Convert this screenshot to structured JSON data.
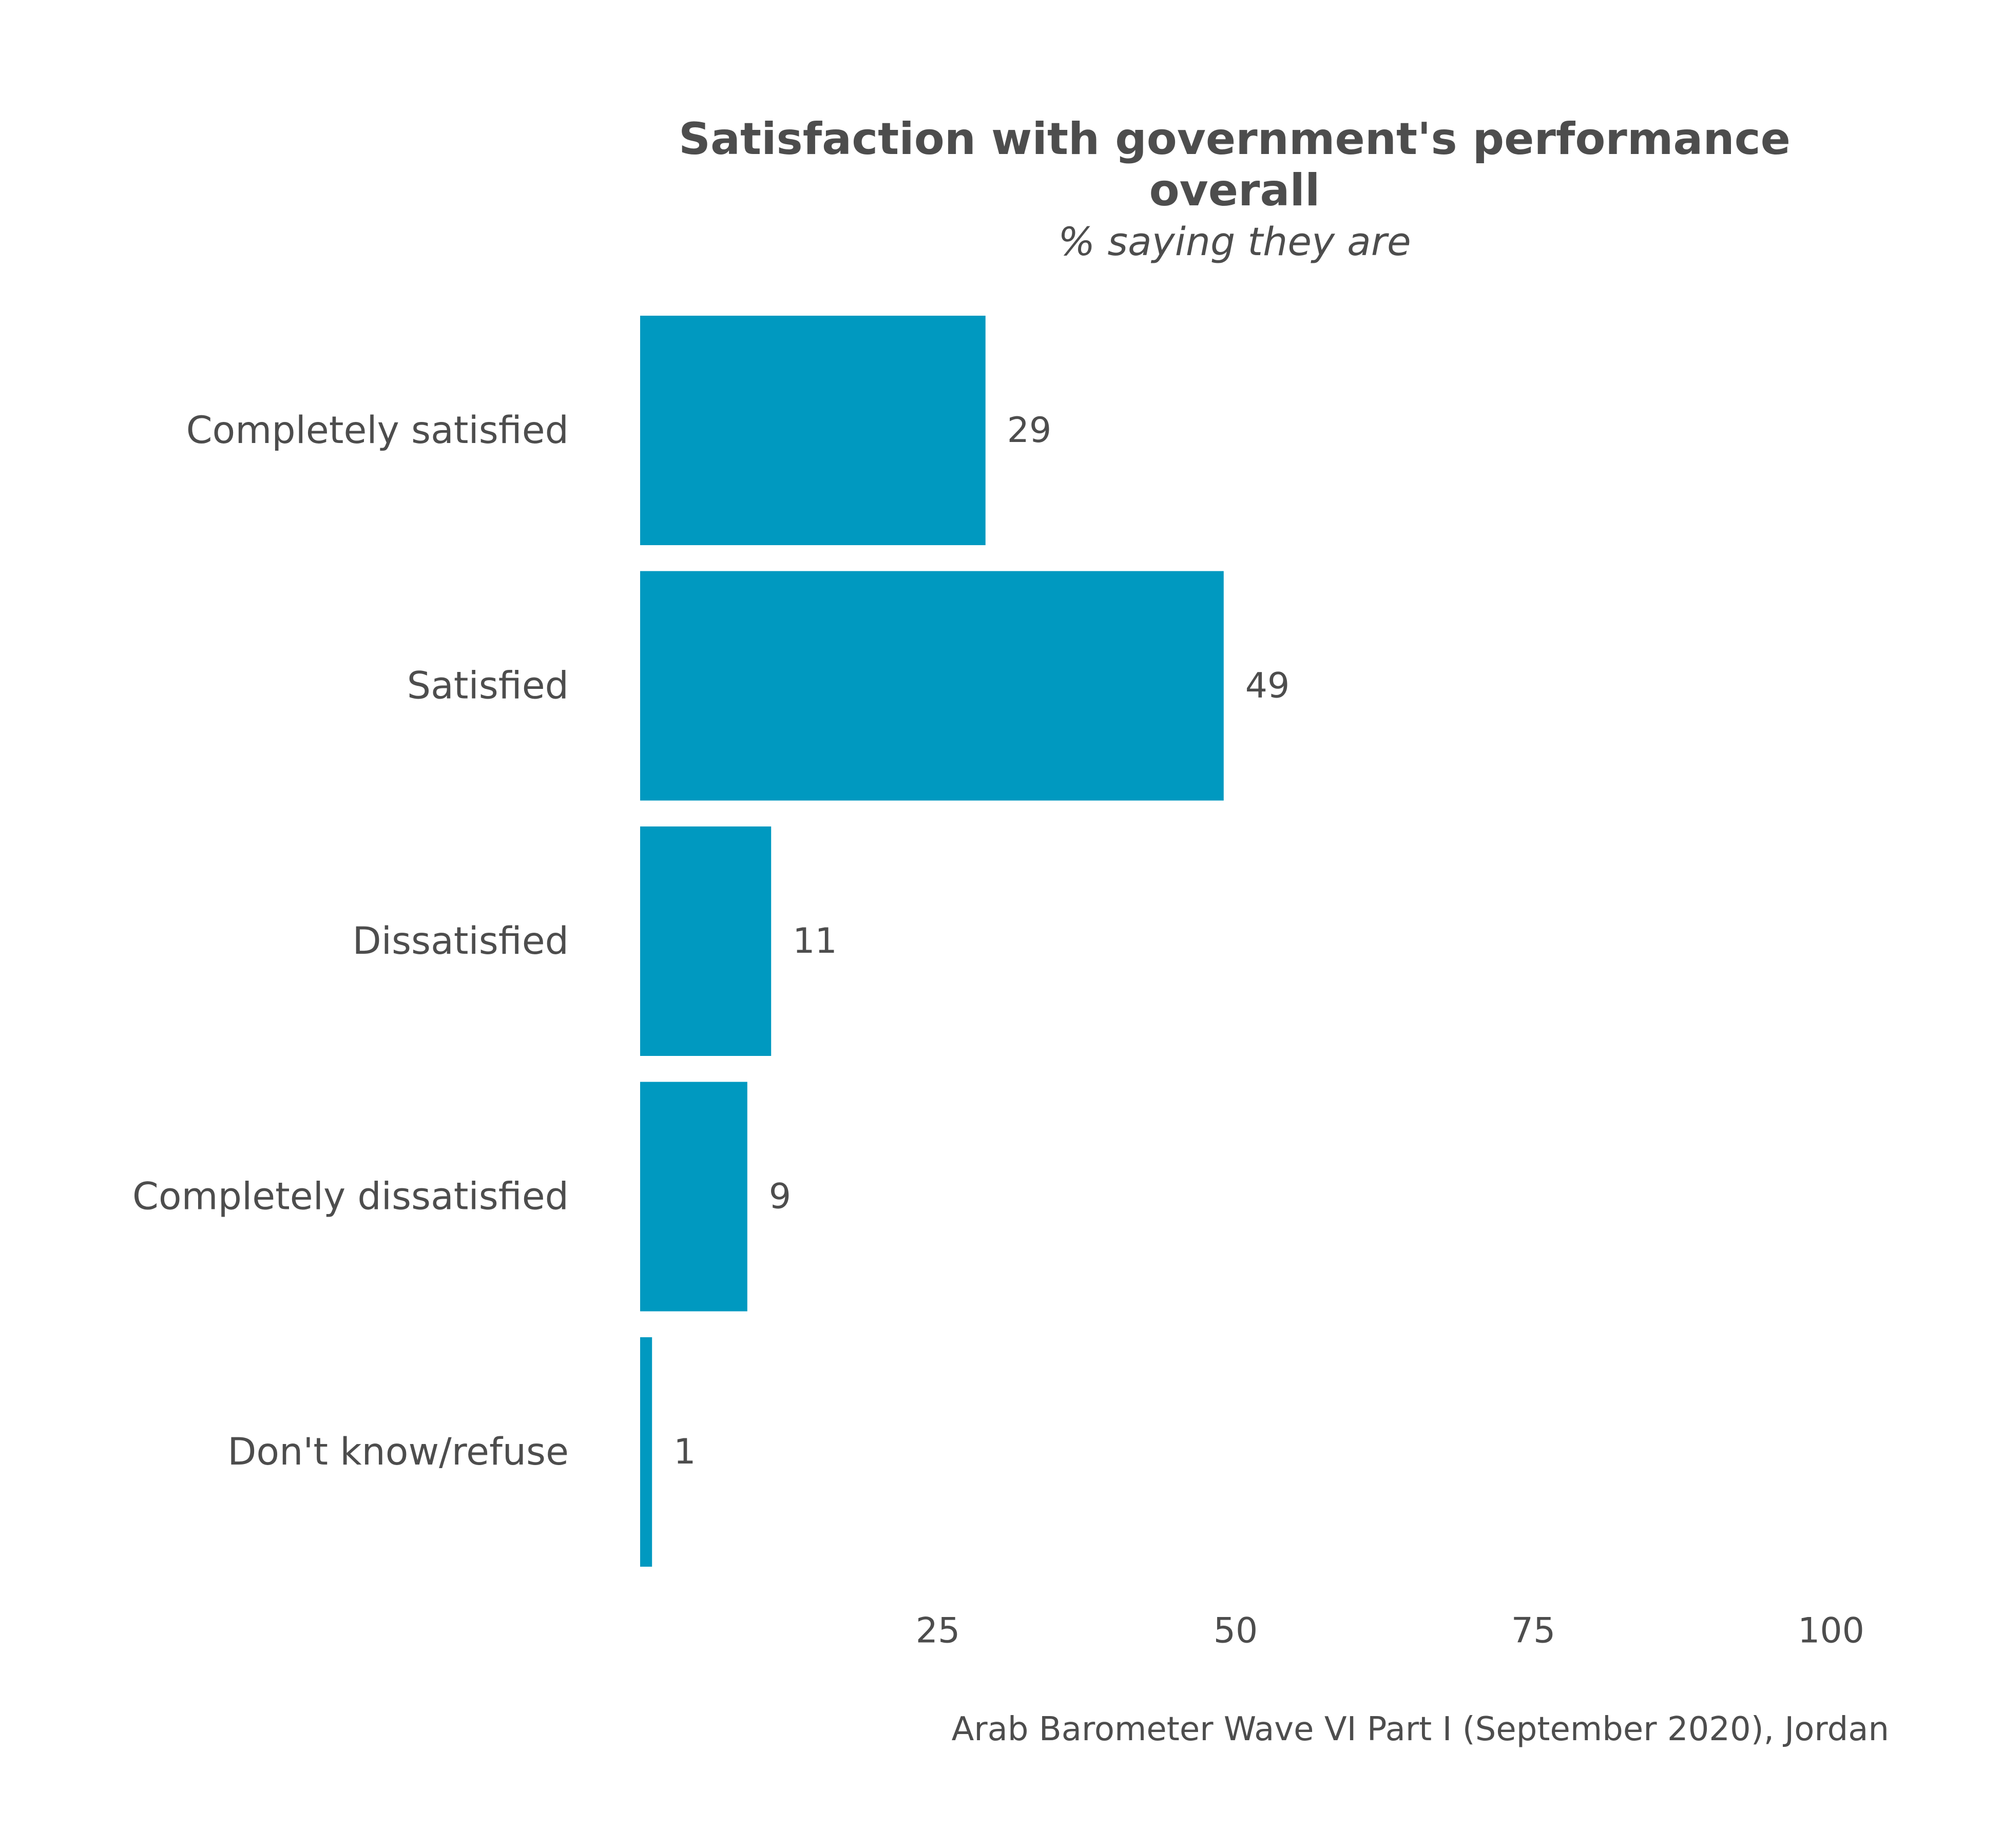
{
  "chart_data": {
    "type": "bar",
    "orientation": "horizontal",
    "title_lines": [
      "Satisfaction with government's performance",
      "overall"
    ],
    "subtitle": "% saying they are",
    "categories": [
      "Completely satisfied",
      "Satisfied",
      "Dissatisfied",
      "Completely dissatisfied",
      "Don't know/refuse"
    ],
    "values": [
      29,
      49,
      11,
      9,
      1
    ],
    "value_labels": [
      "29",
      "49",
      "11",
      "9",
      "1"
    ],
    "xlim": [
      0,
      100
    ],
    "x_ticks": [
      25,
      50,
      75,
      100
    ],
    "x_tick_labels": [
      "25",
      "50",
      "75",
      "100"
    ],
    "xlabel": "",
    "ylabel": "",
    "grid": false,
    "legend": "none",
    "caption": "Arab Barometer Wave VI Part I (September 2020), Jordan",
    "colors": {
      "bar": "#0099c0",
      "text": "#4d4d4d",
      "background": "#ffffff"
    }
  }
}
